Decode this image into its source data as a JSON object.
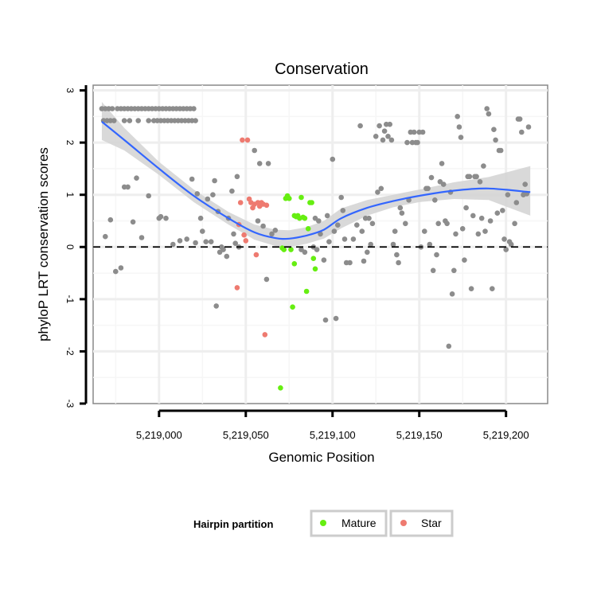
{
  "chart_data": {
    "type": "scatter",
    "title": "Conservation",
    "xlabel": "Genomic Position",
    "ylabel": "phyloP LRT conservation scores",
    "xlim": [
      5218962,
      5219224
    ],
    "ylim": [
      -3,
      3.1
    ],
    "x_ticks": [
      5219000,
      5219050,
      5219100,
      5219150,
      5219200
    ],
    "x_tick_labels": [
      "5,219,000",
      "5,219,050",
      "5,219,100",
      "5,219,150",
      "5,219,200"
    ],
    "y_ticks": [
      -3,
      -2,
      -1,
      0,
      1,
      2,
      3
    ],
    "y_tick_labels": [
      "-3",
      "-2",
      "-1",
      "0",
      "1",
      "2",
      "3"
    ],
    "reference_line": {
      "y": 0,
      "style": "dashed"
    },
    "legend": {
      "title": "Hairpin partition",
      "position": "bottom",
      "entries": [
        {
          "label": "Mature",
          "color": "#66ee11"
        },
        {
          "label": "Star",
          "color": "#ee7a70"
        }
      ]
    },
    "colors": {
      "other": "#8c8c8c",
      "smooth": "#3366ff",
      "band": "#d2d2d2"
    },
    "series": [
      {
        "name": "Other",
        "points": [
          [
            5218967,
            2.65
          ],
          [
            5218968,
            2.42
          ],
          [
            5218969,
            2.65
          ],
          [
            5218970,
            2.42
          ],
          [
            5218971,
            2.65
          ],
          [
            5218972,
            2.42
          ],
          [
            5218973,
            2.65
          ],
          [
            5218974,
            2.42
          ],
          [
            5218976,
            2.65
          ],
          [
            5218978,
            2.65
          ],
          [
            5218980,
            2.65
          ],
          [
            5218982,
            2.65
          ],
          [
            5218984,
            2.65
          ],
          [
            5218986,
            2.65
          ],
          [
            5218988,
            2.65
          ],
          [
            5218990,
            2.65
          ],
          [
            5218992,
            2.65
          ],
          [
            5218994,
            2.65
          ],
          [
            5218996,
            2.65
          ],
          [
            5218998,
            2.65
          ],
          [
            5219000,
            2.65
          ],
          [
            5219002,
            2.65
          ],
          [
            5219004,
            2.65
          ],
          [
            5219006,
            2.65
          ],
          [
            5219008,
            2.65
          ],
          [
            5219010,
            2.65
          ],
          [
            5219012,
            2.65
          ],
          [
            5219014,
            2.65
          ],
          [
            5219016,
            2.65
          ],
          [
            5219018,
            2.65
          ],
          [
            5219020,
            2.65
          ],
          [
            5218980,
            2.42
          ],
          [
            5218983,
            2.42
          ],
          [
            5218988,
            2.42
          ],
          [
            5218994,
            2.42
          ],
          [
            5218997,
            2.42
          ],
          [
            5218999,
            2.42
          ],
          [
            5219001,
            2.42
          ],
          [
            5219003,
            2.42
          ],
          [
            5219005,
            2.42
          ],
          [
            5219007,
            2.42
          ],
          [
            5219009,
            2.42
          ],
          [
            5219011,
            2.42
          ],
          [
            5219013,
            2.42
          ],
          [
            5219015,
            2.42
          ],
          [
            5219017,
            2.42
          ],
          [
            5219019,
            2.42
          ],
          [
            5219021,
            2.42
          ],
          [
            5218969,
            0.2
          ],
          [
            5218972,
            0.52
          ],
          [
            5218975,
            -0.47
          ],
          [
            5218978,
            -0.4
          ],
          [
            5218980,
            1.15
          ],
          [
            5218982,
            1.15
          ],
          [
            5218985,
            0.48
          ],
          [
            5218987,
            1.32
          ],
          [
            5218990,
            0.18
          ],
          [
            5218994,
            0.98
          ],
          [
            5219000,
            0.55
          ],
          [
            5219001,
            0.58
          ],
          [
            5219004,
            0.55
          ],
          [
            5219008,
            0.05
          ],
          [
            5219012,
            0.12
          ],
          [
            5219016,
            0.15
          ],
          [
            5219019,
            1.3
          ],
          [
            5219021,
            0.08
          ],
          [
            5219022,
            1.02
          ],
          [
            5219024,
            0.55
          ],
          [
            5219025,
            0.3
          ],
          [
            5219027,
            0.1
          ],
          [
            5219028,
            0.92
          ],
          [
            5219030,
            0.1
          ],
          [
            5219031,
            1.0
          ],
          [
            5219032,
            1.27
          ],
          [
            5219033,
            -1.13
          ],
          [
            5219034,
            0.68
          ],
          [
            5219035,
            -0.1
          ],
          [
            5219036,
            0.0
          ],
          [
            5219037,
            -0.05
          ],
          [
            5219039,
            -0.18
          ],
          [
            5219040,
            0.55
          ],
          [
            5219042,
            1.07
          ],
          [
            5219043,
            0.25
          ],
          [
            5219044,
            0.07
          ],
          [
            5219045,
            1.35
          ],
          [
            5219046,
            0.0
          ],
          [
            5219055,
            1.85
          ],
          [
            5219057,
            0.5
          ],
          [
            5219058,
            1.6
          ],
          [
            5219060,
            0.4
          ],
          [
            5219062,
            -0.62
          ],
          [
            5219063,
            1.6
          ],
          [
            5219065,
            0.25
          ],
          [
            5219067,
            0.32
          ],
          [
            5219089,
            0.0
          ],
          [
            5219090,
            0.55
          ],
          [
            5219091,
            -0.05
          ],
          [
            5219092,
            0.5
          ],
          [
            5219093,
            0.25
          ],
          [
            5219095,
            -0.25
          ],
          [
            5219096,
            -1.4
          ],
          [
            5219097,
            0.6
          ],
          [
            5219098,
            0.1
          ],
          [
            5219100,
            1.68
          ],
          [
            5219101,
            0.3
          ],
          [
            5219102,
            -1.37
          ],
          [
            5219103,
            0.42
          ],
          [
            5219105,
            0.95
          ],
          [
            5219106,
            0.7
          ],
          [
            5219107,
            0.15
          ],
          [
            5219108,
            -0.3
          ],
          [
            5219110,
            -0.3
          ],
          [
            5219112,
            0.15
          ],
          [
            5219114,
            0.42
          ],
          [
            5219116,
            2.32
          ],
          [
            5219117,
            0.3
          ],
          [
            5219118,
            -0.27
          ],
          [
            5219119,
            0.55
          ],
          [
            5219120,
            -0.1
          ],
          [
            5219121,
            0.55
          ],
          [
            5219122,
            0.05
          ],
          [
            5219123,
            0.45
          ],
          [
            5219125,
            2.12
          ],
          [
            5219126,
            1.05
          ],
          [
            5219127,
            2.32
          ],
          [
            5219128,
            1.12
          ],
          [
            5219129,
            2.05
          ],
          [
            5219130,
            2.22
          ],
          [
            5219131,
            2.35
          ],
          [
            5219132,
            2.12
          ],
          [
            5219133,
            2.35
          ],
          [
            5219134,
            2.05
          ],
          [
            5219135,
            0.05
          ],
          [
            5219136,
            0.3
          ],
          [
            5219137,
            -0.15
          ],
          [
            5219138,
            -0.3
          ],
          [
            5219139,
            0.75
          ],
          [
            5219140,
            0.65
          ],
          [
            5219142,
            0.45
          ],
          [
            5219143,
            2.0
          ],
          [
            5219144,
            0.9
          ],
          [
            5219145,
            2.2
          ],
          [
            5219146,
            2.0
          ],
          [
            5219147,
            2.2
          ],
          [
            5219148,
            2.0
          ],
          [
            5219149,
            2.0
          ],
          [
            5219150,
            2.2
          ],
          [
            5219151,
            0.0
          ],
          [
            5219152,
            2.2
          ],
          [
            5219153,
            0.3
          ],
          [
            5219154,
            1.12
          ],
          [
            5219155,
            1.12
          ],
          [
            5219156,
            0.05
          ],
          [
            5219157,
            1.33
          ],
          [
            5219158,
            -0.45
          ],
          [
            5219159,
            0.9
          ],
          [
            5219160,
            -0.15
          ],
          [
            5219161,
            0.45
          ],
          [
            5219162,
            1.25
          ],
          [
            5219163,
            1.6
          ],
          [
            5219164,
            1.2
          ],
          [
            5219165,
            0.5
          ],
          [
            5219166,
            0.45
          ],
          [
            5219167,
            -1.9
          ],
          [
            5219168,
            1.05
          ],
          [
            5219169,
            -0.9
          ],
          [
            5219170,
            -0.45
          ],
          [
            5219171,
            0.25
          ],
          [
            5219172,
            2.5
          ],
          [
            5219173,
            2.3
          ],
          [
            5219174,
            2.1
          ],
          [
            5219175,
            0.35
          ],
          [
            5219176,
            -0.25
          ],
          [
            5219177,
            0.75
          ],
          [
            5219178,
            1.35
          ],
          [
            5219179,
            1.35
          ],
          [
            5219180,
            -0.8
          ],
          [
            5219181,
            0.6
          ],
          [
            5219182,
            1.35
          ],
          [
            5219183,
            1.35
          ],
          [
            5219184,
            0.25
          ],
          [
            5219185,
            1.25
          ],
          [
            5219186,
            0.55
          ],
          [
            5219187,
            1.55
          ],
          [
            5219188,
            0.3
          ],
          [
            5219189,
            2.65
          ],
          [
            5219190,
            2.55
          ],
          [
            5219191,
            0.5
          ],
          [
            5219192,
            -0.8
          ],
          [
            5219193,
            2.25
          ],
          [
            5219194,
            2.05
          ],
          [
            5219195,
            0.65
          ],
          [
            5219196,
            1.85
          ],
          [
            5219197,
            1.85
          ],
          [
            5219198,
            0.7
          ],
          [
            5219199,
            0.15
          ],
          [
            5219200,
            -0.05
          ],
          [
            5219201,
            1.0
          ],
          [
            5219202,
            0.1
          ],
          [
            5219203,
            0.05
          ],
          [
            5219205,
            0.45
          ],
          [
            5219206,
            0.85
          ],
          [
            5219207,
            2.45
          ],
          [
            5219208,
            2.45
          ],
          [
            5219209,
            2.2
          ],
          [
            5219210,
            1.0
          ],
          [
            5219211,
            1.2
          ],
          [
            5219212,
            1.02
          ],
          [
            5219213,
            2.3
          ],
          [
            5219082,
            -0.05
          ],
          [
            5219084,
            -0.1
          ]
        ]
      },
      {
        "name": "Mature",
        "points": [
          [
            5219070,
            -2.7
          ],
          [
            5219071,
            -0.02
          ],
          [
            5219072,
            -0.05
          ],
          [
            5219073,
            0.93
          ],
          [
            5219074,
            0.98
          ],
          [
            5219075,
            0.93
          ],
          [
            5219076,
            -0.05
          ],
          [
            5219077,
            -1.15
          ],
          [
            5219078,
            -0.32
          ],
          [
            5219078,
            0.6
          ],
          [
            5219079,
            0.58
          ],
          [
            5219080,
            0.6
          ],
          [
            5219081,
            0.55
          ],
          [
            5219082,
            0.95
          ],
          [
            5219083,
            0.57
          ],
          [
            5219084,
            0.55
          ],
          [
            5219085,
            -0.85
          ],
          [
            5219086,
            0.35
          ],
          [
            5219087,
            0.85
          ],
          [
            5219088,
            0.85
          ],
          [
            5219089,
            -0.22
          ],
          [
            5219090,
            -0.42
          ]
        ]
      },
      {
        "name": "Star",
        "points": [
          [
            5219045,
            -0.78
          ],
          [
            5219046,
            0.43
          ],
          [
            5219047,
            0.85
          ],
          [
            5219048,
            2.05
          ],
          [
            5219049,
            0.23
          ],
          [
            5219050,
            0.12
          ],
          [
            5219051,
            2.05
          ],
          [
            5219052,
            0.92
          ],
          [
            5219053,
            0.85
          ],
          [
            5219054,
            0.75
          ],
          [
            5219055,
            0.82
          ],
          [
            5219056,
            -0.15
          ],
          [
            5219057,
            0.85
          ],
          [
            5219058,
            0.78
          ],
          [
            5219059,
            0.85
          ],
          [
            5219060,
            0.82
          ],
          [
            5219061,
            -1.68
          ],
          [
            5219062,
            0.8
          ]
        ]
      }
    ],
    "smooth": {
      "x": [
        5218967,
        5218980,
        5219000,
        5219020,
        5219040,
        5219055,
        5219067,
        5219075,
        5219085,
        5219095,
        5219105,
        5219120,
        5219135,
        5219150,
        5219170,
        5219190,
        5219214
      ],
      "y": [
        2.4,
        2.05,
        1.5,
        0.98,
        0.55,
        0.28,
        0.17,
        0.16,
        0.22,
        0.33,
        0.55,
        0.75,
        0.88,
        0.98,
        1.08,
        1.12,
        1.05
      ],
      "lo": [
        2.05,
        1.85,
        1.38,
        0.86,
        0.43,
        0.14,
        0.02,
        0.0,
        0.06,
        0.16,
        0.36,
        0.6,
        0.76,
        0.86,
        0.92,
        0.9,
        0.6
      ],
      "hi": [
        2.78,
        2.28,
        1.63,
        1.1,
        0.67,
        0.43,
        0.33,
        0.32,
        0.38,
        0.5,
        0.74,
        0.9,
        1.0,
        1.1,
        1.24,
        1.34,
        1.55
      ]
    }
  }
}
